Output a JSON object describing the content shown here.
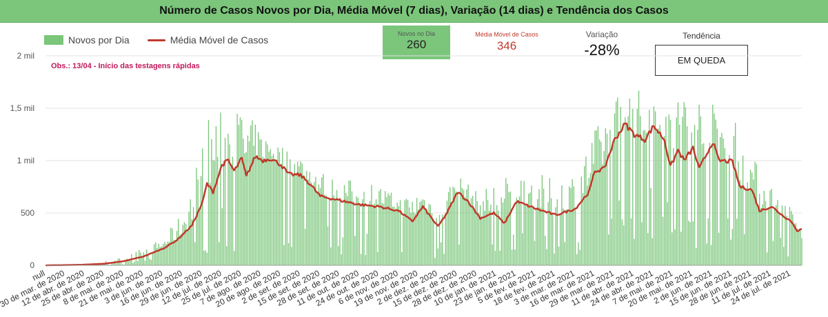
{
  "title": "Número de Casos Novos por Dia, Média Móvel (7 dias), Variação (14 dias) e Tendência dos Casos",
  "legend": {
    "bars": "Novos por Dia",
    "line": "Média Móvel de Casos"
  },
  "note": "Obs.: 13/04 - Início das testagens rápidas",
  "kpis": {
    "novos_label": "Novos no Dia",
    "novos_value": "260",
    "media_label": "Média Móvel de Casos",
    "media_value": "346",
    "variacao_label": "Variação",
    "variacao_value": "-28%",
    "tendencia_label": "Tendência",
    "tendencia_value": "EM QUEDA"
  },
  "colors": {
    "bars": "#7bc67b",
    "line": "#c0392b",
    "note": "#c2185b",
    "header": "#7bc67b"
  },
  "chart_data": {
    "type": "bar",
    "x_start": "2020-03-17",
    "x_end": "2021-07-31",
    "ylim": [
      0,
      2000
    ],
    "yticks": [
      0,
      500,
      1000,
      1500,
      2000
    ],
    "ytick_labels": [
      "0",
      "500",
      "1 mil",
      "1,5 mil",
      "2 mil"
    ],
    "xtick_labels": [
      "null",
      "30 de mar. de 2020",
      "12 de abr. de 2020",
      "25 de abr. de 2020",
      "8 de mai. de 2020",
      "21 de mai. de 2020",
      "3 de jun. de 2020",
      "16 de jun. de 2020",
      "29 de jun. de 2020",
      "12 de jul. de 2020",
      "25 de jul. de 2020",
      "7 de ago. de 2020",
      "20 de ago. de 2020",
      "2 de set. de 2020",
      "15 de set. de 2020",
      "28 de set. de 2020",
      "11 de out. de 2020",
      "24 de out. de 2020",
      "6 de nov. de 2020",
      "19 de nov. de 2020",
      "2 de dez. de 2020",
      "15 de dez. de 2020",
      "28 de dez. de 2020",
      "10 de jan. de 2021",
      "23 de jan. de 2021",
      "5 de fev. de 2021",
      "18 de fev. de 2021",
      "3 de mar. de 2021",
      "16 de mar. de 2021",
      "29 de mar. de 2021",
      "11 de abr. de 2021",
      "24 de abr. de 2021",
      "7 de mai. de 2021",
      "20 de mai. de 2021",
      "2 de jun. de 2021",
      "15 de jun. de 2021",
      "28 de jun. de 2021",
      "11 de jul. de 2021",
      "24 de jul. de 2021"
    ],
    "series": [
      {
        "name": "Média Móvel de Casos",
        "type": "line",
        "points": [
          [
            "2020-03-17",
            0
          ],
          [
            "2020-04-10",
            5
          ],
          [
            "2020-04-25",
            15
          ],
          [
            "2020-05-08",
            40
          ],
          [
            "2020-05-21",
            85
          ],
          [
            "2020-06-03",
            160
          ],
          [
            "2020-06-12",
            240
          ],
          [
            "2020-06-22",
            380
          ],
          [
            "2020-06-29",
            600
          ],
          [
            "2020-07-02",
            780
          ],
          [
            "2020-07-06",
            700
          ],
          [
            "2020-07-12",
            960
          ],
          [
            "2020-07-16",
            1000
          ],
          [
            "2020-07-20",
            900
          ],
          [
            "2020-07-25",
            1020
          ],
          [
            "2020-07-28",
            850
          ],
          [
            "2020-08-03",
            1040
          ],
          [
            "2020-08-08",
            1000
          ],
          [
            "2020-08-13",
            1020
          ],
          [
            "2020-08-20",
            960
          ],
          [
            "2020-08-25",
            870
          ],
          [
            "2020-09-02",
            860
          ],
          [
            "2020-09-08",
            780
          ],
          [
            "2020-09-15",
            660
          ],
          [
            "2020-09-28",
            620
          ],
          [
            "2020-10-11",
            580
          ],
          [
            "2020-10-24",
            560
          ],
          [
            "2020-11-06",
            520
          ],
          [
            "2020-11-15",
            420
          ],
          [
            "2020-11-22",
            560
          ],
          [
            "2020-12-02",
            370
          ],
          [
            "2020-12-08",
            500
          ],
          [
            "2020-12-15",
            700
          ],
          [
            "2020-12-22",
            610
          ],
          [
            "2020-12-30",
            450
          ],
          [
            "2021-01-08",
            500
          ],
          [
            "2021-01-15",
            400
          ],
          [
            "2021-01-23",
            610
          ],
          [
            "2021-02-05",
            540
          ],
          [
            "2021-02-18",
            480
          ],
          [
            "2021-03-03",
            540
          ],
          [
            "2021-03-12",
            700
          ],
          [
            "2021-03-16",
            900
          ],
          [
            "2021-03-22",
            920
          ],
          [
            "2021-03-29",
            1200
          ],
          [
            "2021-04-05",
            1350
          ],
          [
            "2021-04-11",
            1250
          ],
          [
            "2021-04-18",
            1200
          ],
          [
            "2021-04-24",
            1330
          ],
          [
            "2021-05-01",
            1200
          ],
          [
            "2021-05-05",
            940
          ],
          [
            "2021-05-10",
            1100
          ],
          [
            "2021-05-14",
            1000
          ],
          [
            "2021-05-20",
            1120
          ],
          [
            "2021-05-24",
            920
          ],
          [
            "2021-06-02",
            1180
          ],
          [
            "2021-06-06",
            1000
          ],
          [
            "2021-06-15",
            990
          ],
          [
            "2021-06-20",
            750
          ],
          [
            "2021-06-28",
            720
          ],
          [
            "2021-07-03",
            520
          ],
          [
            "2021-07-11",
            560
          ],
          [
            "2021-07-18",
            480
          ],
          [
            "2021-07-24",
            420
          ],
          [
            "2021-07-28",
            330
          ],
          [
            "2021-07-31",
            346
          ]
        ]
      },
      {
        "name": "Novos por Dia",
        "type": "bar",
        "envelope": [
          [
            "2020-03-17",
            0
          ],
          [
            "2020-04-15",
            15
          ],
          [
            "2020-05-08",
            80
          ],
          [
            "2020-05-21",
            170
          ],
          [
            "2020-06-03",
            260
          ],
          [
            "2020-06-16",
            520
          ],
          [
            "2020-06-29",
            1200
          ],
          [
            "2020-07-06",
            1620
          ],
          [
            "2020-07-12",
            1450
          ],
          [
            "2020-07-25",
            1520
          ],
          [
            "2020-08-07",
            1280
          ],
          [
            "2020-08-20",
            1150
          ],
          [
            "2020-09-02",
            1050
          ],
          [
            "2020-09-15",
            920
          ],
          [
            "2020-09-28",
            820
          ],
          [
            "2020-10-11",
            820
          ],
          [
            "2020-10-24",
            780
          ],
          [
            "2020-11-06",
            650
          ],
          [
            "2020-11-19",
            720
          ],
          [
            "2020-12-02",
            640
          ],
          [
            "2020-12-15",
            880
          ],
          [
            "2020-12-28",
            700
          ],
          [
            "2021-01-10",
            820
          ],
          [
            "2021-01-23",
            920
          ],
          [
            "2021-02-05",
            880
          ],
          [
            "2021-02-18",
            820
          ],
          [
            "2021-03-03",
            920
          ],
          [
            "2021-03-16",
            1300
          ],
          [
            "2021-03-29",
            1640
          ],
          [
            "2021-04-11",
            1700
          ],
          [
            "2021-04-24",
            1650
          ],
          [
            "2021-05-07",
            1700
          ],
          [
            "2021-05-20",
            1740
          ],
          [
            "2021-06-02",
            1550
          ],
          [
            "2021-06-15",
            1560
          ],
          [
            "2021-06-28",
            1050
          ],
          [
            "2021-07-11",
            780
          ],
          [
            "2021-07-24",
            550
          ],
          [
            "2021-07-31",
            260
          ]
        ]
      }
    ]
  }
}
